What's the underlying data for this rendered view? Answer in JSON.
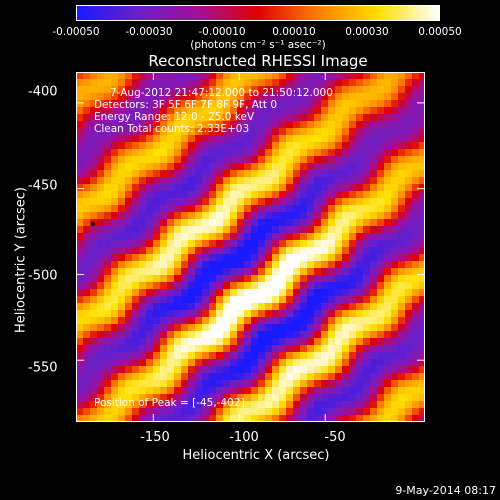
{
  "colorbar": {
    "ticks": [
      "-0.00050",
      "-0.00030",
      "-0.00010",
      "0.00010",
      "0.00030",
      "0.00050"
    ],
    "units": "(photons cm⁻² s⁻¹ asec⁻²)",
    "range": [
      -0.0005,
      0.0005
    ],
    "colors": [
      "#1a1aff",
      "#6a1fc8",
      "#a0109a",
      "#e00000",
      "#ff8000",
      "#ffe000",
      "#ffffff"
    ]
  },
  "title": "Reconstructed RHESSI Image",
  "info": {
    "time": "7-Aug-2012 21:47:12.000 to 21:50:12.000",
    "detectors": "Detectors: 3F 5F 6F 7F 8F 9F, Att 0",
    "energy": "Energy Range: 12.0 - 25.0 keV",
    "method": "Clean     Total counts: 2.33E+03",
    "peak": "Position of Peak = [-45,-402]"
  },
  "axes": {
    "x_label": "Heliocentric X (arcsec)",
    "y_label": "Heliocentric Y (arcsec)",
    "x_ticks": [
      "-150",
      "-100",
      "-50"
    ],
    "y_ticks": [
      "-400",
      "-450",
      "-500",
      "-550"
    ],
    "x_range": [
      -195,
      8
    ],
    "y_range": [
      -586,
      -382
    ]
  },
  "footer": {
    "date": "9-May-2014 08:17"
  }
}
